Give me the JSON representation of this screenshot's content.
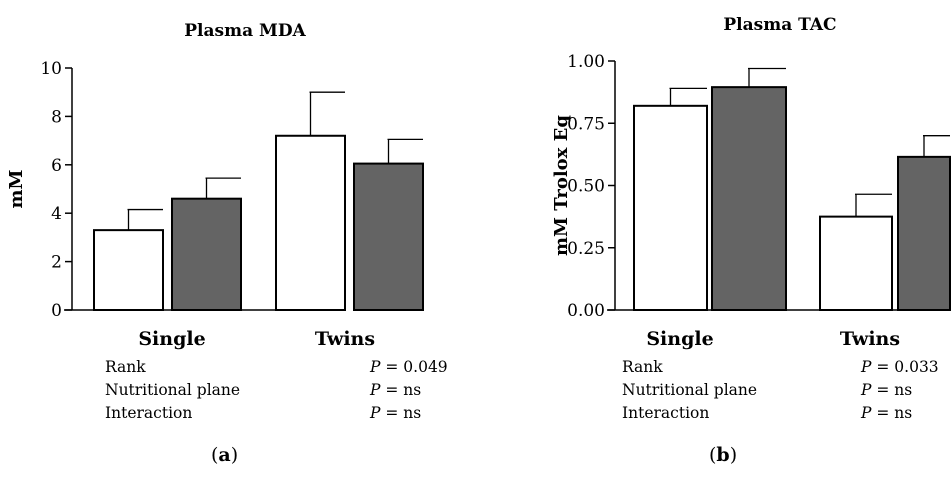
{
  "chart_data": [
    {
      "type": "bar",
      "title": "Plasma MDA",
      "ylabel": "mM",
      "xlabel": "",
      "ylim": [
        0,
        10
      ],
      "yticks": [
        0,
        2,
        4,
        6,
        8,
        10
      ],
      "groups": [
        "Single",
        "Twins"
      ],
      "series": [
        {
          "color": "#ffffff",
          "values": [
            3.3,
            7.2
          ],
          "errors": [
            0.85,
            1.8
          ]
        },
        {
          "color": "#646464",
          "values": [
            4.6,
            6.05
          ],
          "errors": [
            0.85,
            1.0
          ]
        }
      ],
      "grid": false,
      "panel_label": "a",
      "stats": [
        {
          "label": "Rank",
          "p": "P",
          "value": "= 0.049"
        },
        {
          "label": "Nutritional plane",
          "p": "P",
          "value": "= ns"
        },
        {
          "label": "Interaction",
          "p": "P",
          "value": "= ns"
        }
      ]
    },
    {
      "type": "bar",
      "title": "Plasma TAC",
      "ylabel": "mM Trolox Eq",
      "xlabel": "",
      "ylim": [
        0,
        1
      ],
      "yticks": [
        "0.00",
        "0.25",
        "0.50",
        "0.75",
        "1.00"
      ],
      "groups": [
        "Single",
        "Twins"
      ],
      "series": [
        {
          "color": "#ffffff",
          "values": [
            0.82,
            0.375
          ],
          "errors": [
            0.07,
            0.09
          ]
        },
        {
          "color": "#646464",
          "values": [
            0.895,
            0.615
          ],
          "errors": [
            0.075,
            0.085
          ]
        }
      ],
      "grid": false,
      "panel_label": "b",
      "stats": [
        {
          "label": "Rank",
          "p": "P",
          "value": "= 0.033"
        },
        {
          "label": "Nutritional plane",
          "p": "P",
          "value": "= ns"
        },
        {
          "label": "Interaction",
          "p": "P",
          "value": "= ns"
        }
      ]
    }
  ]
}
